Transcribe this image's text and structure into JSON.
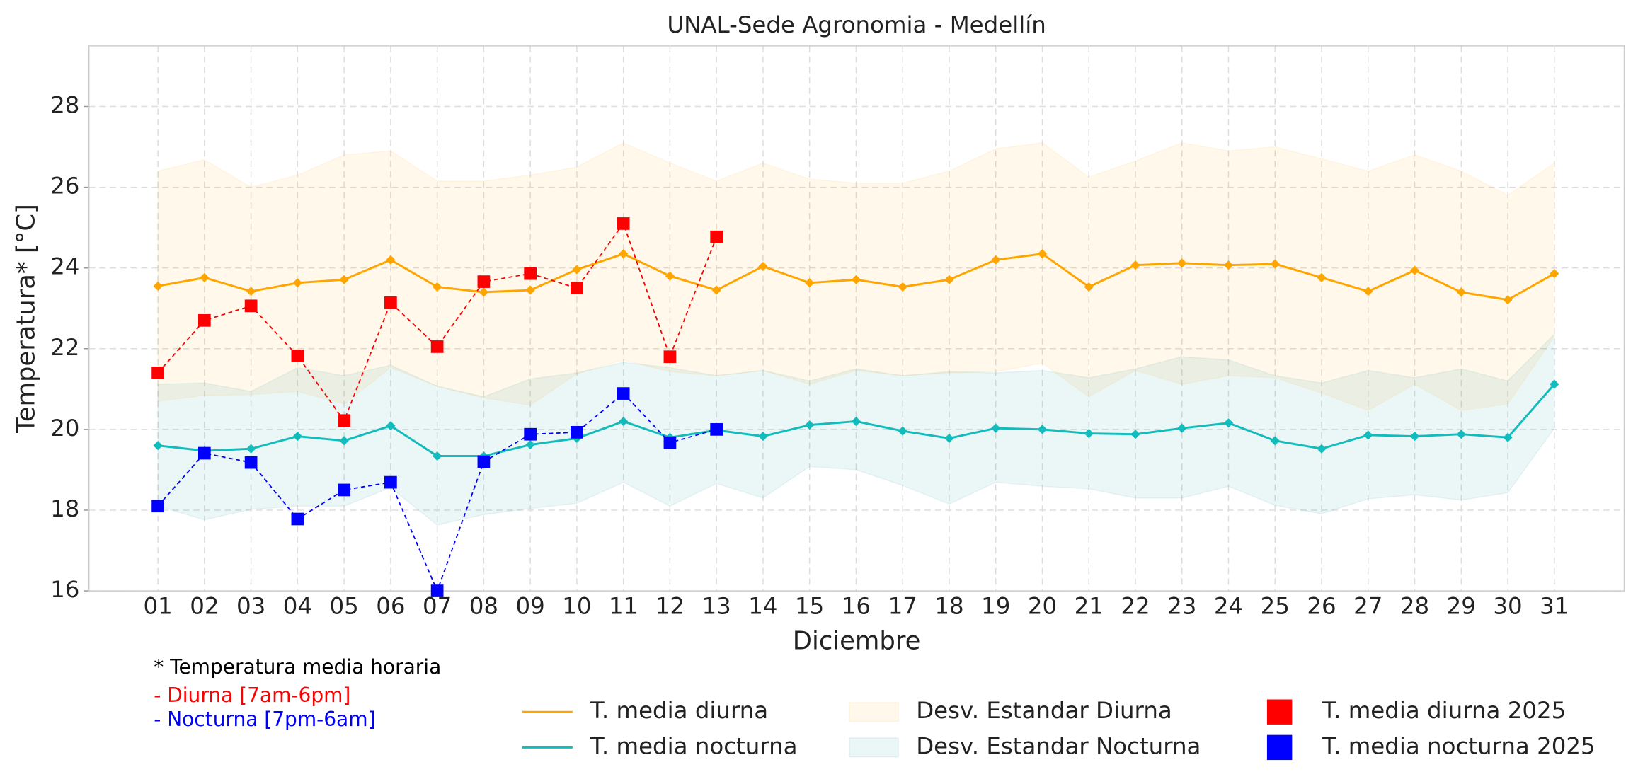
{
  "chart_data": {
    "type": "line",
    "title": "UNAL-Sede Agronomia - Medellín",
    "x_label": "Diciembre",
    "y_label": "Temperatura* [°C]",
    "annotations": [
      "* Temperatura media horaria",
      "- Diurna [7am-6pm]",
      "- Nocturna [7pm-6am]"
    ],
    "annotation_colors": [
      "#000000",
      "#ff0000",
      "#0000ff"
    ],
    "categories": [
      "01",
      "02",
      "03",
      "04",
      "05",
      "06",
      "07",
      "08",
      "09",
      "10",
      "11",
      "12",
      "13",
      "14",
      "15",
      "16",
      "17",
      "18",
      "19",
      "20",
      "21",
      "22",
      "23",
      "24",
      "25",
      "26",
      "27",
      "28",
      "29",
      "30",
      "31"
    ],
    "ylim": [
      16,
      29.5
    ],
    "yticks": [
      16,
      18,
      20,
      22,
      24,
      26,
      28
    ],
    "grid": true,
    "legend": "lower",
    "bands": [
      {
        "name": "Desv. Estandar Diurna",
        "color": "#ffa500",
        "upper": [
          26.4,
          26.68,
          26.0,
          26.3,
          26.8,
          26.9,
          26.15,
          26.15,
          26.3,
          26.5,
          27.1,
          26.6,
          26.15,
          26.6,
          26.2,
          26.1,
          26.1,
          26.4,
          26.95,
          27.1,
          26.25,
          26.65,
          27.1,
          26.9,
          27.0,
          26.7,
          26.4,
          26.8,
          26.4,
          25.8,
          26.6
        ],
        "lower": [
          20.7,
          20.84,
          20.86,
          20.94,
          20.63,
          21.53,
          21.07,
          20.78,
          20.6,
          21.38,
          21.72,
          21.43,
          21.33,
          21.46,
          21.12,
          21.46,
          21.33,
          21.4,
          21.43,
          21.64,
          20.81,
          21.46,
          21.12,
          21.33,
          21.28,
          20.9,
          20.47,
          21.12,
          20.47,
          20.63,
          22.3
        ]
      },
      {
        "name": "Desv. Estandar Nocturna",
        "color": "#008b8b",
        "upper": [
          21.12,
          21.15,
          20.94,
          21.53,
          21.33,
          21.59,
          21.07,
          20.81,
          21.25,
          21.4,
          21.66,
          21.53,
          21.33,
          21.46,
          21.2,
          21.5,
          21.33,
          21.43,
          21.4,
          21.46,
          21.28,
          21.5,
          21.8,
          21.72,
          21.33,
          21.15,
          21.46,
          21.28,
          21.5,
          21.2,
          22.36
        ],
        "lower": [
          18.1,
          17.76,
          18.02,
          18.1,
          18.1,
          18.56,
          17.63,
          17.89,
          18.04,
          18.17,
          18.69,
          18.1,
          18.66,
          18.3,
          19.08,
          19.0,
          18.61,
          18.15,
          18.69,
          18.59,
          18.53,
          18.3,
          18.3,
          18.59,
          18.12,
          17.91,
          18.28,
          18.38,
          18.25,
          18.43,
          20.03
        ]
      }
    ],
    "series": [
      {
        "name": "T. media diurna",
        "color": "#ffa500",
        "marker": "diamond",
        "dashed": false,
        "values": [
          23.55,
          23.76,
          23.42,
          23.63,
          23.71,
          24.2,
          23.53,
          23.4,
          23.45,
          23.96,
          24.35,
          23.8,
          23.45,
          24.04,
          23.63,
          23.71,
          23.53,
          23.71,
          24.2,
          24.35,
          23.53,
          24.07,
          24.12,
          24.07,
          24.1,
          23.76,
          23.42,
          23.94,
          23.4,
          23.21,
          23.86
        ]
      },
      {
        "name": "T. media nocturna",
        "color": "#13bcbc",
        "marker": "diamond",
        "dashed": false,
        "values": [
          19.6,
          19.47,
          19.52,
          19.83,
          19.72,
          20.09,
          19.34,
          19.34,
          19.62,
          19.78,
          20.2,
          19.8,
          19.98,
          19.83,
          20.11,
          20.2,
          19.96,
          19.78,
          20.03,
          20.0,
          19.9,
          19.88,
          20.03,
          20.16,
          19.72,
          19.52,
          19.86,
          19.83,
          19.88,
          19.8,
          21.12
        ]
      },
      {
        "name": "T. media diurna 2025",
        "color": "#ff0000",
        "marker": "square",
        "dashed": true,
        "values": [
          21.4,
          22.7,
          23.06,
          21.82,
          20.22,
          23.14,
          22.05,
          23.66,
          23.86,
          23.5,
          25.1,
          21.8,
          24.77,
          null,
          null,
          null,
          null,
          null,
          null,
          null,
          null,
          null,
          null,
          null,
          null,
          null,
          null,
          null,
          null,
          null,
          null
        ]
      },
      {
        "name": "T. media nocturna 2025",
        "color": "#0000ff",
        "marker": "square",
        "dashed": true,
        "values": [
          18.1,
          19.41,
          19.18,
          17.78,
          18.5,
          18.69,
          16.0,
          19.2,
          19.88,
          19.93,
          20.89,
          19.67,
          20.0,
          null,
          null,
          null,
          null,
          null,
          null,
          null,
          null,
          null,
          null,
          null,
          null,
          null,
          null,
          null,
          null,
          null,
          null
        ]
      }
    ]
  }
}
